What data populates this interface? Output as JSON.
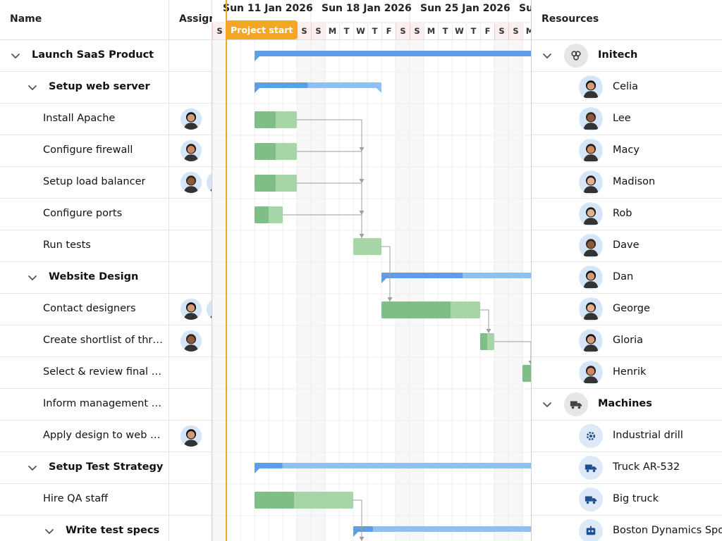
{
  "columns": {
    "name": "Name",
    "assigned": "Assign",
    "resources": "Resources"
  },
  "timeline": {
    "weeks": [
      "Sun 11 Jan 2026",
      "Sun 18 Jan 2026",
      "Sun 25 Jan 2026",
      "Su"
    ],
    "days": [
      "S",
      "M",
      "T",
      "W",
      "T",
      "F",
      "S",
      "S",
      "M",
      "T",
      "W",
      "T",
      "F",
      "S",
      "S",
      "M",
      "T",
      "W",
      "T",
      "F",
      "S",
      "S",
      "M"
    ],
    "marker_label": "Project start"
  },
  "tasks": [
    {
      "name": "Launch SaaS Product",
      "level": 0,
      "parent": true,
      "avatars": []
    },
    {
      "name": "Setup web server",
      "level": 1,
      "parent": true,
      "avatars": []
    },
    {
      "name": "Install Apache",
      "level": 2,
      "parent": false,
      "avatars": [
        "Celia"
      ]
    },
    {
      "name": "Configure firewall",
      "level": 2,
      "parent": false,
      "avatars": [
        "Macy"
      ]
    },
    {
      "name": "Setup load balancer",
      "level": 2,
      "parent": false,
      "avatars": [
        "Lee",
        "Dave"
      ]
    },
    {
      "name": "Configure ports",
      "level": 2,
      "parent": false,
      "avatars": []
    },
    {
      "name": "Run tests",
      "level": 2,
      "parent": false,
      "avatars": []
    },
    {
      "name": "Website Design",
      "level": 1,
      "parent": true,
      "avatars": []
    },
    {
      "name": "Contact designers",
      "level": 2,
      "parent": false,
      "avatars": [
        "Gloria",
        "Dan"
      ]
    },
    {
      "name": "Create shortlist of thr…",
      "level": 2,
      "parent": false,
      "avatars": [
        "Lee"
      ]
    },
    {
      "name": "Select & review final d…",
      "level": 2,
      "parent": false,
      "avatars": []
    },
    {
      "name": "Inform management …",
      "level": 2,
      "parent": false,
      "avatars": []
    },
    {
      "name": "Apply design to web s…",
      "level": 2,
      "parent": false,
      "avatars": [
        "Celia"
      ]
    },
    {
      "name": "Setup Test Strategy",
      "level": 1,
      "parent": true,
      "avatars": []
    },
    {
      "name": "Hire QA staff",
      "level": 2,
      "parent": false,
      "avatars": []
    },
    {
      "name": "Write test specs",
      "level": 2,
      "parent": true,
      "avatars": []
    }
  ],
  "resources": [
    {
      "name": "Initech",
      "group": true,
      "icon": "group-icon"
    },
    {
      "name": "Celia",
      "group": false,
      "icon": "person"
    },
    {
      "name": "Lee",
      "group": false,
      "icon": "person"
    },
    {
      "name": "Macy",
      "group": false,
      "icon": "person"
    },
    {
      "name": "Madison",
      "group": false,
      "icon": "person"
    },
    {
      "name": "Rob",
      "group": false,
      "icon": "person"
    },
    {
      "name": "Dave",
      "group": false,
      "icon": "person"
    },
    {
      "name": "Dan",
      "group": false,
      "icon": "person"
    },
    {
      "name": "George",
      "group": false,
      "icon": "person"
    },
    {
      "name": "Gloria",
      "group": false,
      "icon": "person"
    },
    {
      "name": "Henrik",
      "group": false,
      "icon": "person"
    },
    {
      "name": "Machines",
      "group": true,
      "icon": "truck-icon"
    },
    {
      "name": "Industrial drill",
      "group": false,
      "icon": "gear-icon"
    },
    {
      "name": "Truck AR-532",
      "group": false,
      "icon": "truck-icon"
    },
    {
      "name": "Big truck",
      "group": false,
      "icon": "truck-icon"
    },
    {
      "name": "Boston Dynamics Spot",
      "group": false,
      "icon": "robot-icon"
    }
  ],
  "colors": {
    "accent": "#f5a623",
    "summary_bar": "#5e9ee8",
    "summary_bar_light": "#8fc0f2",
    "task_done": "#7fbf87",
    "task_todo": "#a6d6a8",
    "weekend": "#f7f7f7",
    "weekend_border": "#f3caca"
  }
}
